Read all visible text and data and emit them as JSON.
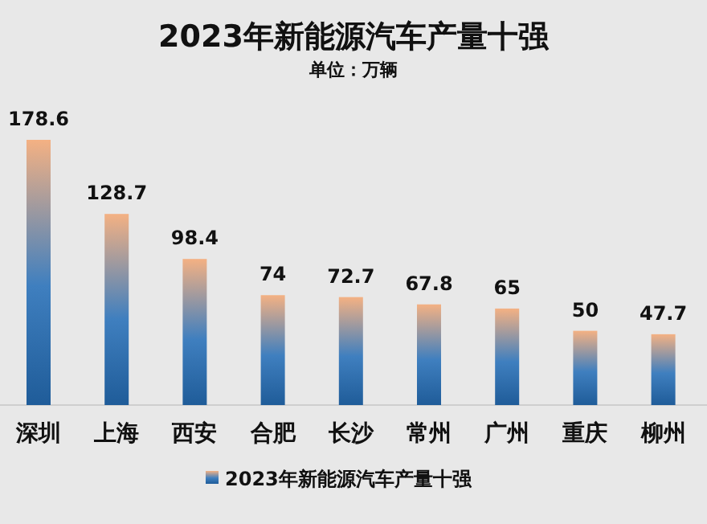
{
  "chart_data": {
    "type": "bar",
    "title": "2023年新能源汽车产量十强",
    "subtitle": "单位：万辆",
    "categories": [
      "深圳",
      "上海",
      "西安",
      "合肥",
      "长沙",
      "常州",
      "广州",
      "重庆",
      "柳州"
    ],
    "series": [
      {
        "name": "2023年新能源汽车产量十强",
        "color": "#1f5c99",
        "values": [
          178.6,
          128.7,
          98.4,
          74,
          72.7,
          67.8,
          65,
          50,
          47.7
        ]
      }
    ],
    "data_labels": true,
    "legend": "bottom",
    "grid": false
  }
}
